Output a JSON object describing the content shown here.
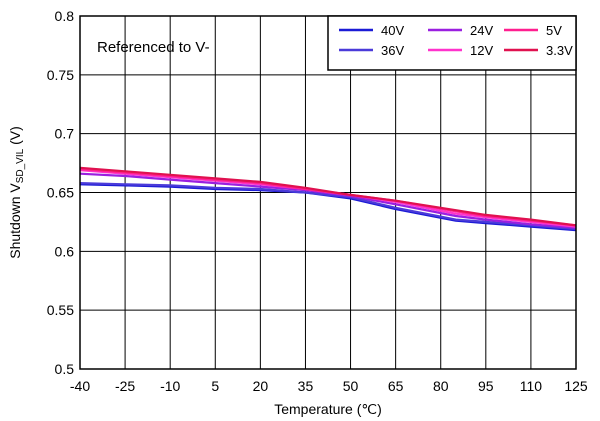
{
  "chart_data": {
    "type": "line",
    "xlabel": "Temperature (℃)",
    "ylabel": {
      "main": "Shutdown V",
      "sub": "SD_VIL",
      "suffix": " (V)"
    },
    "annotation": "Referenced to V-",
    "x_ticks": [
      "-40",
      "-25",
      "-10",
      "5",
      "20",
      "35",
      "50",
      "65",
      "80",
      "95",
      "110",
      "125"
    ],
    "y_ticks": [
      "0.5",
      "0.55",
      "0.6",
      "0.65",
      "0.7",
      "0.75",
      "0.8"
    ],
    "xlim": [
      -40,
      125
    ],
    "ylim": [
      0.5,
      0.8
    ],
    "grid": true,
    "legend_position": "top-right",
    "series": [
      {
        "name": "40V",
        "color": "#1b1bd6",
        "x": [
          -40,
          -25,
          -10,
          5,
          20,
          35,
          50,
          65,
          85,
          95,
          110,
          125
        ],
        "y": [
          0.657,
          0.656,
          0.655,
          0.653,
          0.652,
          0.65,
          0.645,
          0.636,
          0.626,
          0.624,
          0.621,
          0.618
        ]
      },
      {
        "name": "36V",
        "color": "#4b3bd9",
        "x": [
          -40,
          -25,
          -10,
          5,
          20,
          35,
          50,
          65,
          85,
          95,
          110,
          125
        ],
        "y": [
          0.658,
          0.657,
          0.656,
          0.654,
          0.653,
          0.65,
          0.646,
          0.637,
          0.627,
          0.625,
          0.622,
          0.619
        ]
      },
      {
        "name": "24V",
        "color": "#9a1fe0",
        "x": [
          -40,
          -25,
          -10,
          5,
          20,
          35,
          50,
          65,
          85,
          95,
          110,
          125
        ],
        "y": [
          0.666,
          0.664,
          0.661,
          0.658,
          0.655,
          0.652,
          0.647,
          0.64,
          0.63,
          0.627,
          0.623,
          0.62
        ]
      },
      {
        "name": "12V",
        "color": "#ff33cc",
        "x": [
          -40,
          -25,
          -10,
          5,
          20,
          35,
          50,
          65,
          85,
          95,
          110,
          125
        ],
        "y": [
          0.669,
          0.666,
          0.663,
          0.66,
          0.657,
          0.653,
          0.648,
          0.642,
          0.632,
          0.629,
          0.625,
          0.621
        ]
      },
      {
        "name": "5V",
        "color": "#ff1f8f",
        "x": [
          -40,
          -25,
          -10,
          5,
          20,
          35,
          50,
          65,
          85,
          95,
          110,
          125
        ],
        "y": [
          0.67,
          0.667,
          0.664,
          0.661,
          0.658,
          0.653,
          0.648,
          0.643,
          0.634,
          0.63,
          0.626,
          0.622
        ]
      },
      {
        "name": "3.3V",
        "color": "#e0114f",
        "x": [
          -40,
          -25,
          -10,
          5,
          20,
          35,
          50,
          65,
          85,
          95,
          110,
          125
        ],
        "y": [
          0.671,
          0.668,
          0.665,
          0.662,
          0.659,
          0.654,
          0.648,
          0.643,
          0.635,
          0.631,
          0.627,
          0.622
        ]
      }
    ]
  }
}
